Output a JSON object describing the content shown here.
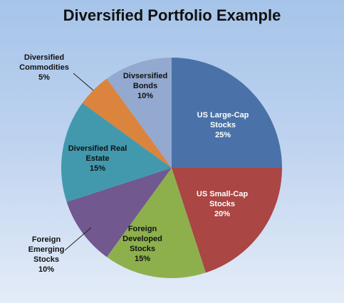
{
  "chart_data": {
    "type": "pie",
    "title": "Diversified Portfolio Example",
    "slices": [
      {
        "lines": [
          "US Large-Cap",
          "Stocks",
          "25%"
        ],
        "value": 25,
        "color": "#4a72a8",
        "text_color": "#ffffff"
      },
      {
        "lines": [
          "US Small-Cap",
          "Stocks",
          "20%"
        ],
        "value": 20,
        "color": "#aa4643",
        "text_color": "#ffffff"
      },
      {
        "lines": [
          "Foreign",
          "Developed",
          "Stocks",
          "15%"
        ],
        "value": 15,
        "color": "#8db04d",
        "text_color": "#111111"
      },
      {
        "lines": [
          "Foreign",
          "Emerging",
          "Stocks",
          "10%"
        ],
        "value": 10,
        "color": "#71588f",
        "text_color": "#111111"
      },
      {
        "lines": [
          "Diversified Real",
          "Estate",
          "15%"
        ],
        "value": 15,
        "color": "#4299ae",
        "text_color": "#111111"
      },
      {
        "lines": [
          "Diversified",
          "Commodities",
          "5%"
        ],
        "value": 5,
        "color": "#db843d",
        "text_color": "#111111"
      },
      {
        "lines": [
          "Divsersified",
          "Bonds",
          "10%"
        ],
        "value": 10,
        "color": "#93a9cf",
        "text_color": "#111111"
      }
    ],
    "start_angle_deg": 0,
    "direction": "clockwise"
  }
}
